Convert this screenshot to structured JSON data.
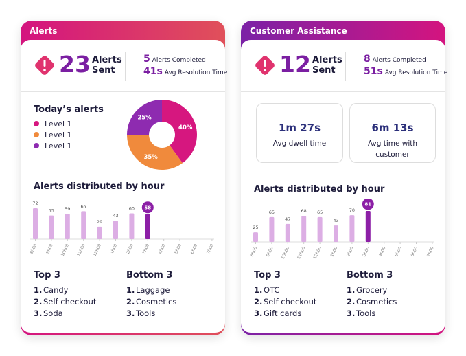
{
  "cards": [
    {
      "title": "Alerts",
      "summary": {
        "count": 23,
        "count_label": "Alerts Sent",
        "stats": [
          {
            "value": 5,
            "label": "Alerts Completed"
          },
          {
            "value": "41s",
            "label": "Avg Resolution Time"
          }
        ]
      },
      "pie": {
        "type": "pie",
        "title": "Today’s alerts",
        "categories": [
          "Level 1",
          "Level 1",
          "Level 1"
        ],
        "values": [
          40,
          35,
          25
        ],
        "value_labels": [
          "40%",
          "35%",
          "25%"
        ],
        "colors": [
          "#d6177f",
          "#f08a3c",
          "#8e2bb0"
        ]
      },
      "bars": {
        "type": "bar",
        "title": "Alerts distributed by hour",
        "categories": [
          "8h00",
          "9h00",
          "10h00",
          "11h00",
          "12h00",
          "1h00",
          "2h00",
          "3h00",
          "4h00",
          "5h00",
          "6h00",
          "7h00"
        ],
        "values": [
          72,
          55,
          59,
          65,
          29,
          43,
          60,
          58,
          null,
          null,
          null,
          null
        ],
        "color": "#dcaee4",
        "highlight": 7,
        "highlight_color": "#8c1fa6"
      },
      "lists": [
        {
          "title": "Top 3",
          "items": [
            {
              "rank": "1.",
              "name": "Candy"
            },
            {
              "rank": "2.",
              "name": "Self checkout"
            },
            {
              "rank": "3.",
              "name": "Soda"
            }
          ]
        },
        {
          "title": "Bottom 3",
          "items": [
            {
              "rank": "1.",
              "name": "Laggage"
            },
            {
              "rank": "2.",
              "name": "Cosmetics"
            },
            {
              "rank": "3.",
              "name": "Tools"
            }
          ]
        }
      ]
    },
    {
      "title": "Customer Assistance",
      "summary": {
        "count": 12,
        "count_label": "Alerts Sent",
        "stats": [
          {
            "value": 8,
            "label": "Alerts Completed"
          },
          {
            "value": "51s",
            "label": "Avg Resolution Time"
          }
        ]
      },
      "metrics": [
        {
          "value": "1m 27s",
          "label": "Avg dwell time"
        },
        {
          "value": "6m 13s",
          "label": "Avg time with customer"
        }
      ],
      "bars": {
        "type": "bar",
        "title": "Alerts distributed by hour",
        "categories": [
          "8h00",
          "9h00",
          "10h00",
          "11h00",
          "12h00",
          "1h00",
          "2h00",
          "3h00",
          "4h00",
          "5h00",
          "6h00",
          "7h00"
        ],
        "values": [
          25,
          65,
          47,
          68,
          65,
          43,
          70,
          81,
          null,
          null,
          null,
          null
        ],
        "color": "#dcaee4",
        "highlight": 7,
        "highlight_color": "#8c1fa6"
      },
      "lists": [
        {
          "title": "Top 3",
          "items": [
            {
              "rank": "1.",
              "name": "OTC"
            },
            {
              "rank": "2.",
              "name": "Self checkout"
            },
            {
              "rank": "3.",
              "name": "Gift cards"
            }
          ]
        },
        {
          "title": "Bottom 3",
          "items": [
            {
              "rank": "1.",
              "name": "Grocery"
            },
            {
              "rank": "2.",
              "name": "Cosmetics"
            },
            {
              "rank": "3.",
              "name": "Tools"
            }
          ]
        }
      ]
    }
  ]
}
